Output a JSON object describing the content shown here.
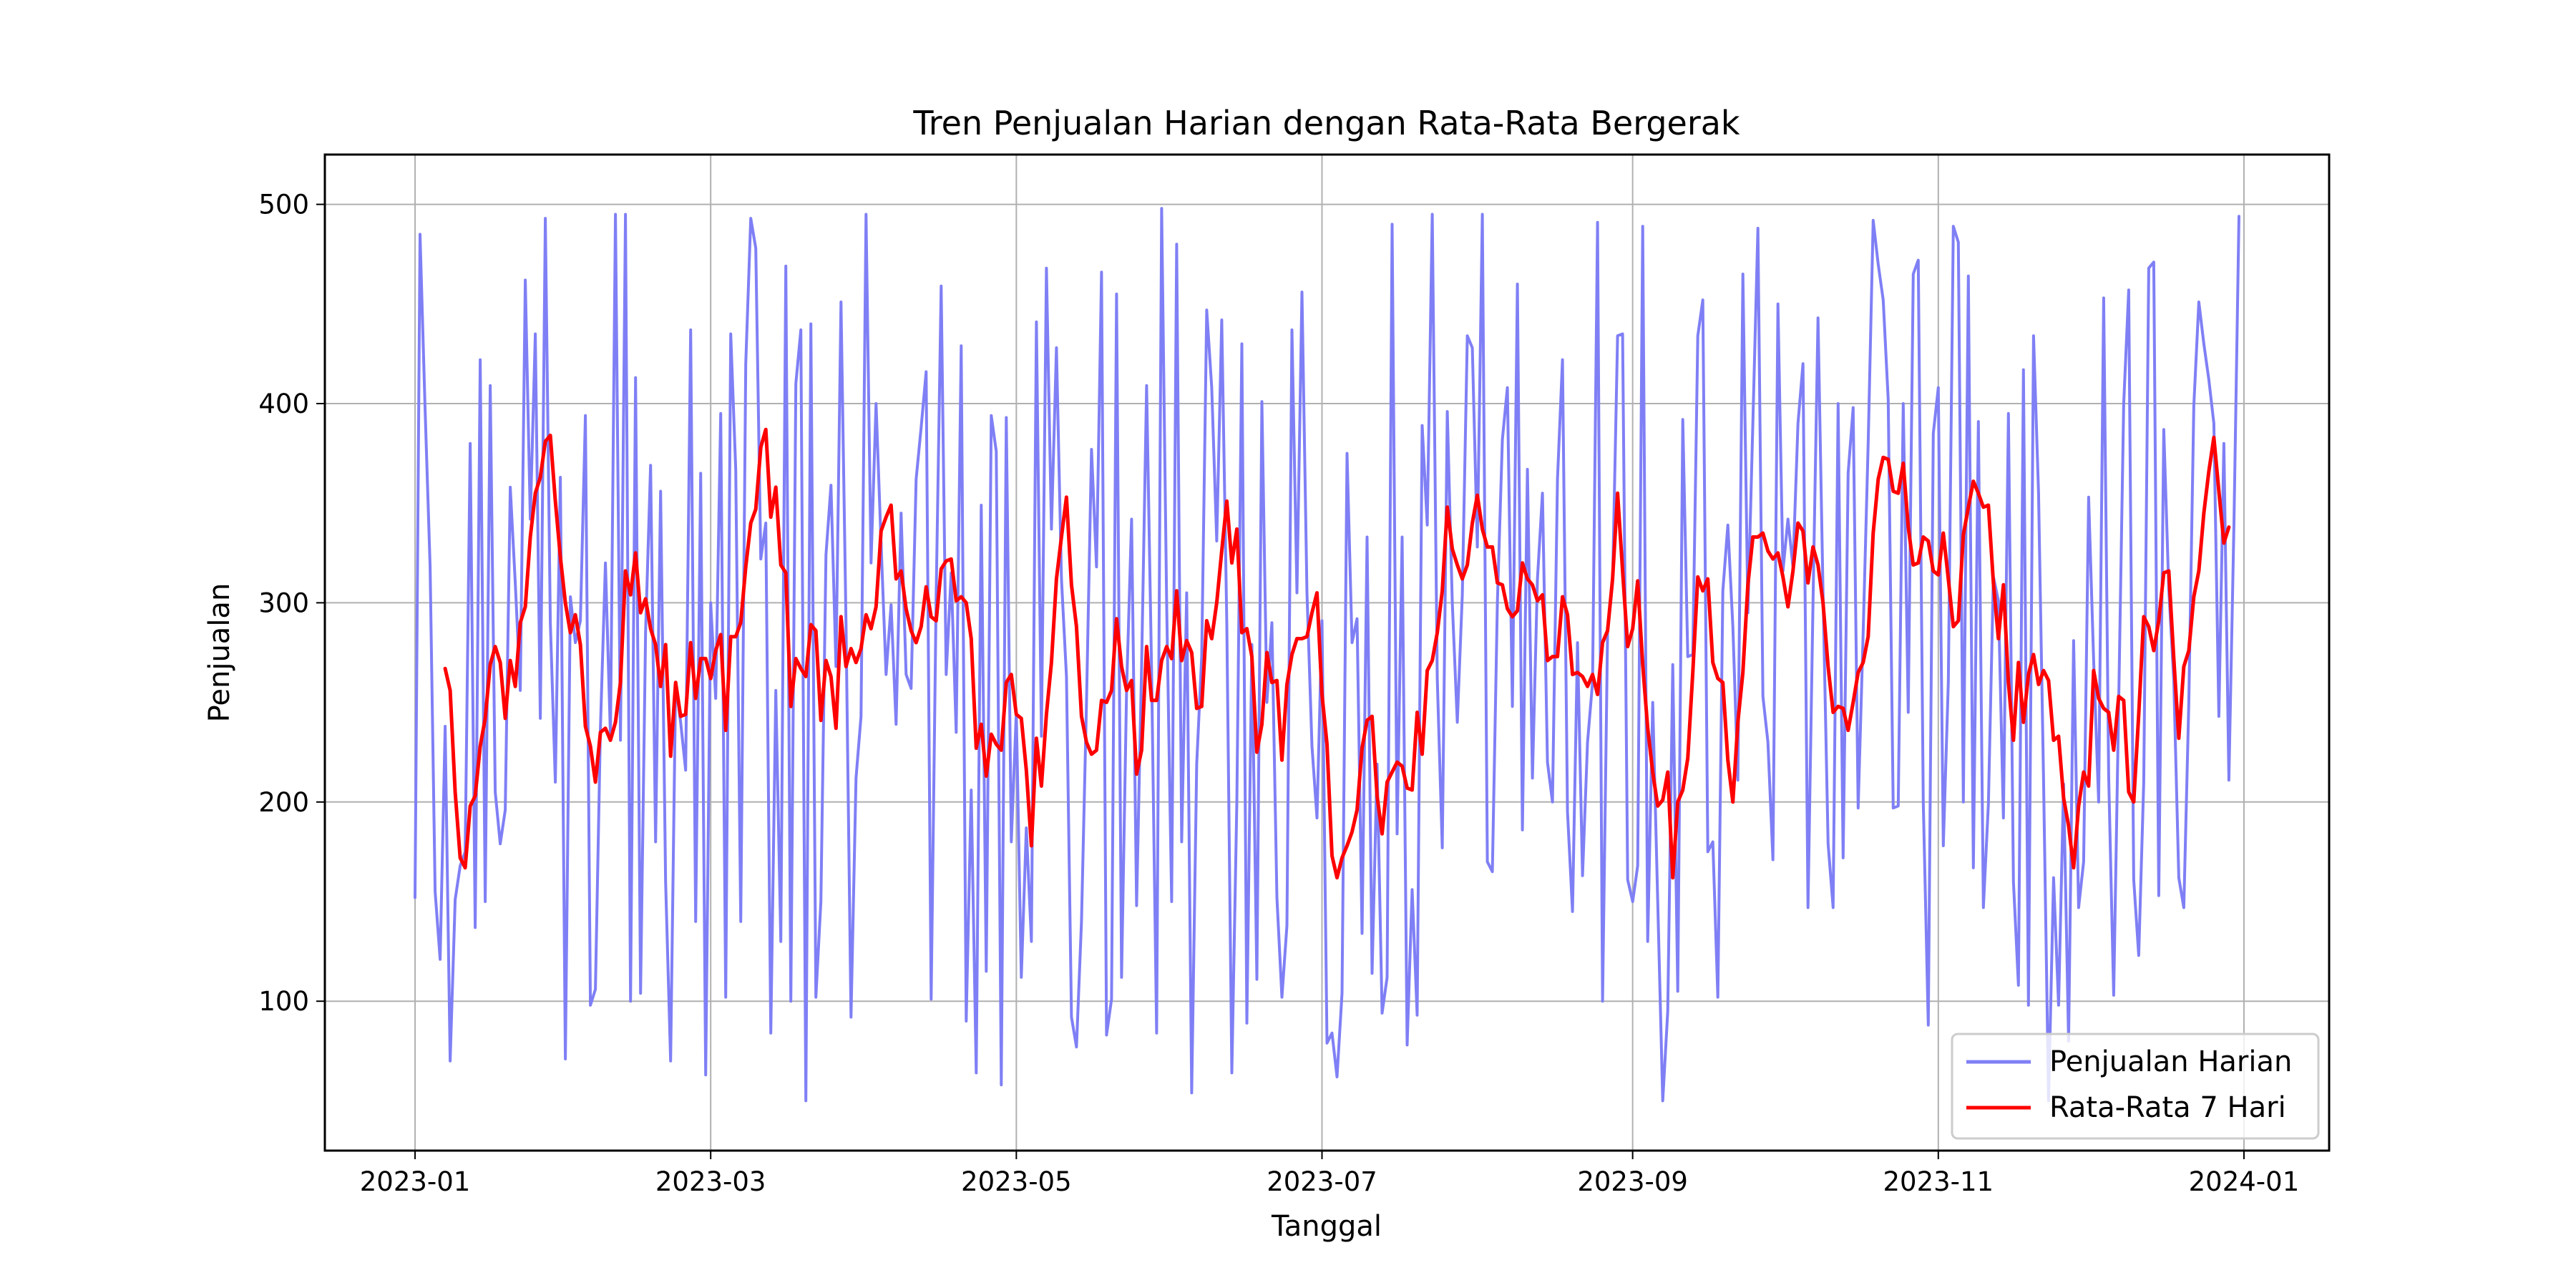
{
  "chart_data": {
    "type": "line",
    "title": "Tren Penjualan Harian dengan Rata-Rata Bergerak",
    "xlabel": "Tanggal",
    "ylabel": "Penjualan",
    "x_start": "2023-01-01",
    "x_end": "2023-12-31",
    "xlim": [
      "2022-12-14",
      "2024-01-18"
    ],
    "ylim": [
      25,
      525
    ],
    "x_ticks": [
      "2023-01",
      "2023-03",
      "2023-05",
      "2023-07",
      "2023-09",
      "2023-11",
      "2024-01"
    ],
    "y_ticks": [
      100,
      200,
      300,
      400,
      500
    ],
    "grid": true,
    "legend_position": "bottom-right",
    "series": [
      {
        "name": "Penjualan Harian",
        "color": "#7f7ff5",
        "values": [
          152,
          485,
          398,
          318,
          155,
          121,
          238,
          70,
          151,
          168,
          175,
          380,
          137,
          422,
          150,
          409,
          205,
          179,
          196,
          358,
          310,
          256,
          462,
          342,
          435,
          242,
          493,
          290,
          210,
          363,
          71,
          303,
          280,
          291,
          394,
          98,
          106,
          237,
          320,
          233,
          495,
          231,
          495,
          100,
          413,
          104,
          285,
          369,
          180,
          356,
          160,
          70,
          260,
          240,
          216,
          437,
          140,
          365,
          63,
          300,
          252,
          395,
          102,
          435,
          367,
          140,
          420,
          493,
          478,
          322,
          340,
          84,
          256,
          130,
          469,
          100,
          410,
          437,
          50,
          440,
          102,
          150,
          324,
          359,
          268,
          451,
          290,
          92,
          212,
          243,
          495,
          320,
          400,
          330,
          264,
          299,
          239,
          345,
          264,
          257,
          362,
          388,
          416,
          101,
          303,
          459,
          264,
          315,
          235,
          429,
          90,
          206,
          64,
          349,
          115,
          394,
          376,
          58,
          393,
          180,
          245,
          112,
          187,
          130,
          441,
          233,
          468,
          337,
          428,
          312,
          263,
          92,
          77,
          140,
          250,
          377,
          318,
          466,
          83,
          101,
          455,
          112,
          256,
          342,
          148,
          268,
          409,
          265,
          84,
          498,
          300,
          150,
          480,
          180,
          305,
          54,
          219,
          273,
          447,
          408,
          331,
          442,
          289,
          64,
          200,
          430,
          89,
          279,
          111,
          401,
          250,
          290,
          152,
          102,
          138,
          437,
          305,
          456,
          305,
          228,
          192,
          291,
          79,
          84,
          62,
          104,
          375,
          280,
          292,
          134,
          333,
          114,
          219,
          94,
          112,
          490,
          184,
          333,
          78,
          156,
          93,
          389,
          339,
          495,
          262,
          177,
          396,
          300,
          240,
          304,
          434,
          428,
          328,
          495,
          170,
          165,
          300,
          382,
          408,
          248,
          460,
          186,
          367,
          212,
          312,
          355,
          220,
          200,
          362,
          422,
          195,
          145,
          280,
          163,
          230,
          260,
          491,
          100,
          285,
          310,
          434,
          435,
          161,
          150,
          168,
          489,
          130,
          250,
          150,
          50,
          95,
          269,
          105,
          392,
          273,
          274,
          434,
          452,
          175,
          180,
          102,
          306,
          339,
          288,
          211,
          465,
          295,
          391,
          488,
          253,
          230,
          171,
          450,
          316,
          342,
          318,
          390,
          420,
          147,
          300,
          443,
          305,
          179,
          147,
          400,
          172,
          365,
          398,
          197,
          285,
          380,
          492,
          470,
          452,
          402,
          197,
          198,
          400,
          245,
          465,
          472,
          200,
          88,
          385,
          408,
          178,
          260,
          489,
          481,
          200,
          464,
          167,
          391,
          147,
          199,
          313,
          301,
          192,
          395,
          160,
          108,
          417,
          98,
          434,
          355,
          211,
          50,
          162,
          98,
          209,
          80,
          281,
          147,
          170,
          353,
          271,
          200,
          453,
          213,
          103,
          250,
          400,
          457,
          161,
          123,
          210,
          468,
          471,
          153,
          387,
          307,
          261,
          162,
          147,
          250,
          399,
          451,
          430,
          412,
          390,
          243,
          380,
          211,
          340,
          494
        ]
      },
      {
        "name": "Rata-Rata 7 Hari",
        "color": "#ff0000",
        "start_day_index": 6,
        "values": [
          267,
          256,
          205,
          172,
          167,
          198,
          203,
          228,
          242,
          269,
          278,
          270,
          242,
          271,
          258,
          290,
          298,
          333,
          355,
          363,
          381,
          384,
          351,
          323,
          300,
          285,
          294,
          279,
          238,
          228,
          210,
          235,
          237,
          231,
          240,
          260,
          316,
          304,
          325,
          295,
          302,
          287,
          279,
          258,
          279,
          223,
          260,
          243,
          244,
          280,
          252,
          272,
          272,
          262,
          276,
          284,
          236,
          283,
          283,
          290,
          318,
          340,
          347,
          378,
          387,
          343,
          358,
          319,
          315,
          248,
          272,
          267,
          263,
          289,
          286,
          241,
          271,
          263,
          237,
          293,
          268,
          277,
          270,
          277,
          294,
          287,
          298,
          336,
          343,
          349,
          312,
          316,
          297,
          286,
          280,
          288,
          308,
          293,
          291,
          317,
          321,
          322,
          301,
          303,
          300,
          282,
          227,
          239,
          213,
          234,
          229,
          226,
          260,
          264,
          244,
          242,
          216,
          178,
          232,
          208,
          244,
          270,
          312,
          333,
          353,
          309,
          288,
          243,
          230,
          224,
          226,
          251,
          250,
          256,
          292,
          268,
          256,
          261,
          214,
          226,
          278,
          251,
          251,
          271,
          278,
          272,
          306,
          271,
          281,
          275,
          247,
          248,
          291,
          282,
          300,
          326,
          351,
          320,
          337,
          285,
          287,
          273,
          225,
          239,
          275,
          260,
          261,
          221,
          259,
          274,
          282,
          282,
          283,
          295,
          305,
          254,
          229,
          173,
          162,
          172,
          178,
          185,
          196,
          227,
          241,
          243,
          203,
          184,
          210,
          215,
          220,
          218,
          207,
          206,
          245,
          224,
          266,
          271,
          285,
          306,
          348,
          327,
          319,
          312,
          319,
          340,
          354,
          337,
          328,
          328,
          310,
          309,
          297,
          293,
          296,
          320,
          312,
          309,
          301,
          304,
          271,
          273,
          273,
          303,
          294,
          264,
          265,
          263,
          258,
          264,
          254,
          280,
          286,
          312,
          355,
          316,
          278,
          287,
          311,
          269,
          237,
          215,
          198,
          201,
          215,
          162,
          200,
          206,
          222,
          265,
          313,
          306,
          312,
          270,
          262,
          260,
          221,
          200,
          240,
          265,
          309,
          333,
          333,
          335,
          326,
          322,
          325,
          313,
          298,
          316,
          340,
          336,
          310,
          328,
          319,
          300,
          268,
          245,
          248,
          247,
          236,
          250,
          265,
          270,
          283,
          335,
          362,
          373,
          372,
          356,
          355,
          370,
          338,
          319,
          320,
          333,
          331,
          316,
          314,
          335,
          312,
          288,
          291,
          334,
          348,
          361,
          355,
          348,
          349,
          310,
          282,
          309,
          260,
          231,
          270,
          240,
          264,
          274,
          259,
          266,
          261,
          231,
          233,
          202,
          188,
          167,
          198,
          215,
          208,
          266,
          252,
          247,
          245,
          226,
          253,
          251,
          205,
          200,
          244,
          293,
          288,
          276,
          291,
          315,
          316,
          272,
          232,
          268,
          276,
          303,
          316,
          345,
          366,
          383,
          356,
          330,
          338
        ]
      }
    ]
  }
}
